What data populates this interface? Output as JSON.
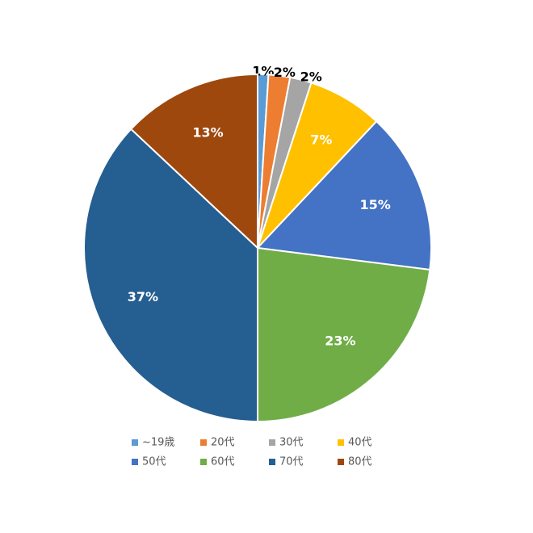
{
  "chart_data": {
    "type": "pie",
    "categories": [
      "~19歳",
      "20代",
      "30代",
      "40代",
      "50代",
      "60代",
      "70代",
      "80代"
    ],
    "values": [
      1,
      2,
      2,
      7,
      15,
      23,
      37,
      13
    ],
    "value_labels": [
      "1%",
      "2%",
      "2%",
      "7%",
      "15%",
      "23%",
      "37%",
      "13%"
    ],
    "colors": [
      "#5b9bd5",
      "#ed7d31",
      "#a5a5a5",
      "#ffc000",
      "#4472c4",
      "#70ad47",
      "#255e91",
      "#9e480e"
    ],
    "legend": "bottom"
  }
}
